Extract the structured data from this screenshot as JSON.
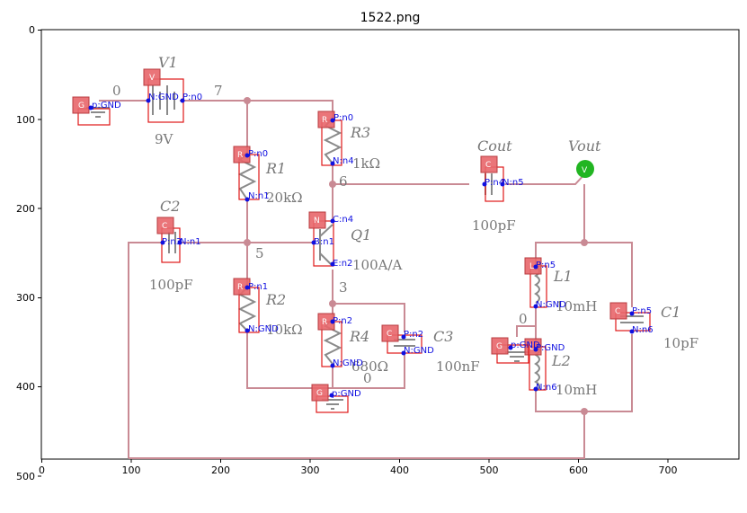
{
  "figure": {
    "title": "1522.png",
    "x_ticks": [
      "0",
      "100",
      "200",
      "300",
      "400",
      "500",
      "600",
      "700"
    ],
    "y_ticks": [
      "0",
      "100",
      "200",
      "300",
      "400",
      "500"
    ]
  },
  "schematic_labels": {
    "v1_name": "V1",
    "v1_value": "9V",
    "node0": "0",
    "node7": "7",
    "r3_name": "R3",
    "r3_value": "1kΩ",
    "r1_name": "R1",
    "r1_value": "20kΩ",
    "node6": "6",
    "cout_name": "Cout",
    "cout_value": "100pF",
    "vout_name": "Vout",
    "c2_name": "C2",
    "c2_value": "100pF",
    "node5": "5",
    "q1_name": "Q1",
    "q1_value": "100A/A",
    "node3": "3",
    "l1_name": "L1",
    "l1_value": "10mH",
    "c1_name": "C1",
    "c1_value": "10pF",
    "r2_name": "R2",
    "r2_value": "10kΩ",
    "r4_name": "R4",
    "r4_value": "680Ω",
    "c3_name": "C3",
    "c3_value": "100nF",
    "node0b": "0",
    "node0c": "0",
    "l2_name": "L2",
    "l2_value": "10mH"
  },
  "annotations": [
    {
      "id": "v1",
      "badge": "V",
      "pins": [
        "N:GND",
        "P:n0"
      ]
    },
    {
      "id": "g1",
      "badge": "G",
      "pins": [
        "p:GND"
      ]
    },
    {
      "id": "r3",
      "badge": "R",
      "pins": [
        "P:n0",
        "N:n4"
      ]
    },
    {
      "id": "r1",
      "badge": "R",
      "pins": [
        "P:n0",
        "N:n1"
      ]
    },
    {
      "id": "cout",
      "badge": "C",
      "pins": [
        "P:n4",
        "N:n5"
      ]
    },
    {
      "id": "vout",
      "badge": "V"
    },
    {
      "id": "c2",
      "badge": "C",
      "pins": [
        "P:n3",
        "N:n1"
      ]
    },
    {
      "id": "q1",
      "badge": "N",
      "pins": [
        "C:n4",
        "B:n1",
        "E:n2"
      ]
    },
    {
      "id": "l1",
      "badge": "L",
      "pins": [
        "P:n5",
        "N:GND"
      ]
    },
    {
      "id": "c1",
      "badge": "C",
      "pins": [
        "P:n5",
        "N:n6"
      ]
    },
    {
      "id": "r2",
      "badge": "R",
      "pins": [
        "P:n1",
        "N:GND"
      ]
    },
    {
      "id": "r4",
      "badge": "R",
      "pins": [
        "P:n2",
        "N:GND"
      ]
    },
    {
      "id": "c3",
      "badge": "C",
      "pins": [
        "P:n2",
        "N:GND"
      ]
    },
    {
      "id": "g2",
      "badge": "G",
      "pins": [
        "p:GND"
      ]
    },
    {
      "id": "l2",
      "badge": "L",
      "pins": [
        "P:GND",
        "N:n6"
      ]
    },
    {
      "id": "g3",
      "badge": "G",
      "pins": [
        "p:GND"
      ]
    }
  ],
  "colors": {
    "wire": "#c98a94",
    "badge": "#e8666a",
    "pin": "#1010e0",
    "box": "#e01818",
    "vout_marker": "#22b522"
  }
}
